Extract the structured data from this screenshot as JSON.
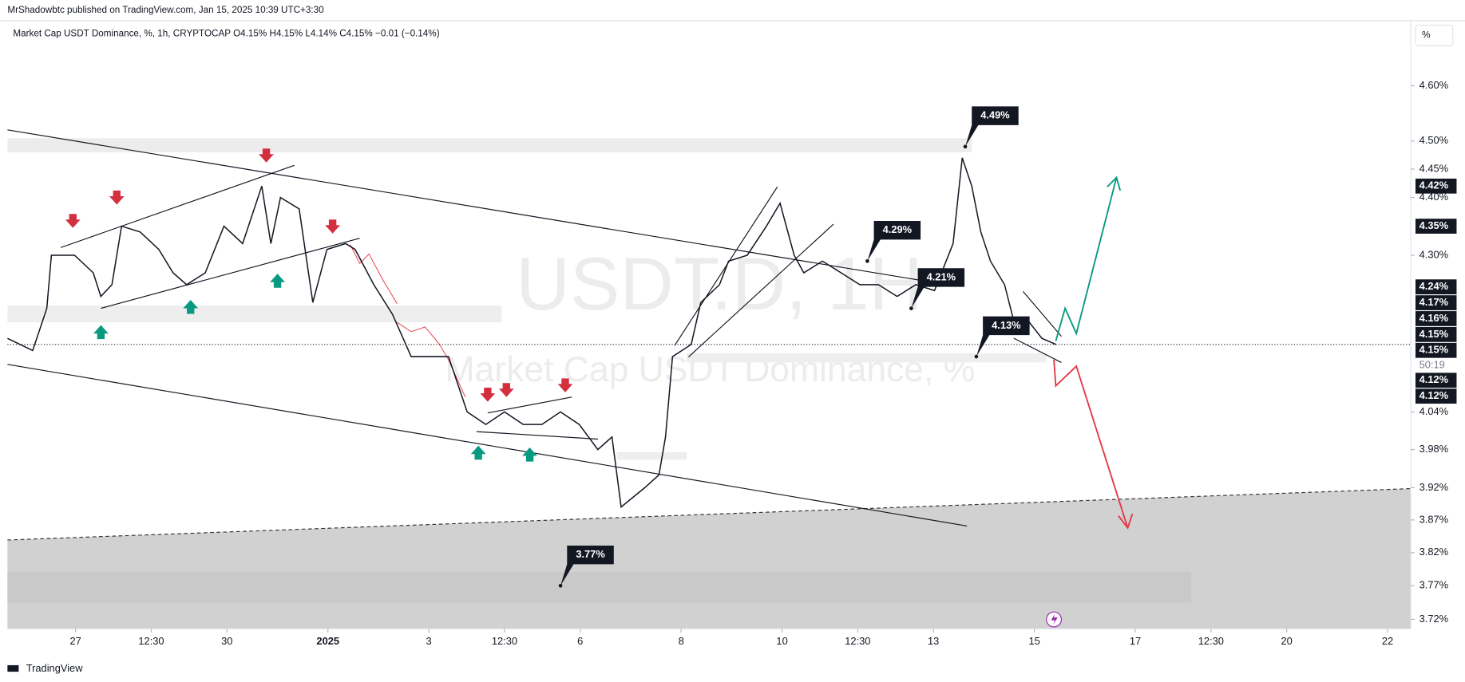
{
  "header": {
    "published": "MrShadowbtc published on TradingView.com, Jan 15, 2025 10:39 UTC+3:30",
    "legend": "Market Cap USDT Dominance, %, 1h, CRYPTOCAP  O4.15%  H4.15%  L4.14%  C4.15%  −0.01 (−0.14%)"
  },
  "scale_button": "%",
  "watermark": {
    "symbol": "USDT.D, 1H",
    "name": "Market Cap USDT Dominance, %"
  },
  "footer": {
    "brand": "TradingView"
  },
  "chart_data": {
    "type": "line",
    "color": "#131722",
    "log_scale": true,
    "grid": false,
    "x": [
      -1.35,
      -0.85,
      -0.57,
      -0.48,
      -0.02,
      0.35,
      0.5,
      0.72,
      0.91,
      1.28,
      1.65,
      1.93,
      2.2,
      2.57,
      2.94,
      3.31,
      3.69,
      3.87,
      4.06,
      4.43,
      4.7,
      4.98,
      5.35,
      5.54,
      5.91,
      6.28,
      6.65,
      7.02,
      7.39,
      7.76,
      8.13,
      8.5,
      8.87,
      9.24,
      9.61,
      9.98,
      10.35,
      10.63,
      10.81,
      11.28,
      11.56,
      11.69,
      11.83,
      12.2,
      12.39,
      12.76,
      12.94,
      13.31,
      13.69,
      13.96,
      14.24,
      14.43,
      14.8,
      15.17,
      15.54,
      15.91,
      16.28,
      16.65,
      17.02,
      17.39,
      17.57,
      17.76,
      17.94,
      18.13,
      18.41,
      18.59,
      18.87,
      19.15,
      19.43
    ],
    "values": [
      4.16,
      4.14,
      4.21,
      4.3,
      4.3,
      4.27,
      4.23,
      4.25,
      4.35,
      4.34,
      4.31,
      4.27,
      4.25,
      4.27,
      4.35,
      4.32,
      4.42,
      4.32,
      4.4,
      4.38,
      4.22,
      4.31,
      4.32,
      4.31,
      4.25,
      4.2,
      4.13,
      4.13,
      4.13,
      4.04,
      4.02,
      4.04,
      4.02,
      4.02,
      4.04,
      4.02,
      3.98,
      4.0,
      3.89,
      3.92,
      3.94,
      4.0,
      4.13,
      4.15,
      4.22,
      4.25,
      4.29,
      4.3,
      4.35,
      4.39,
      4.3,
      4.27,
      4.29,
      4.27,
      4.25,
      4.25,
      4.23,
      4.25,
      4.24,
      4.32,
      4.47,
      4.42,
      4.34,
      4.29,
      4.25,
      4.19,
      4.19,
      4.16,
      4.15
    ],
    "xlim": [
      -1.35,
      26.46
    ],
    "xticks": [
      {
        "value": 0,
        "label": "27"
      },
      {
        "value": 1.5,
        "label": "12:30"
      },
      {
        "value": 3,
        "label": "30"
      },
      {
        "value": 5,
        "label": "2025"
      },
      {
        "value": 7,
        "label": "3"
      },
      {
        "value": 8.5,
        "label": "12:30"
      },
      {
        "value": 10,
        "label": "6"
      },
      {
        "value": 12,
        "label": "8"
      },
      {
        "value": 14,
        "label": "10"
      },
      {
        "value": 15.5,
        "label": "12:30"
      },
      {
        "value": 17,
        "label": "13"
      },
      {
        "value": 19,
        "label": "15"
      },
      {
        "value": 21,
        "label": "17"
      },
      {
        "value": 22.5,
        "label": "12:30"
      },
      {
        "value": 24,
        "label": "20"
      },
      {
        "value": 26,
        "label": "22"
      }
    ],
    "ylim": [
      3.706,
      4.721
    ],
    "yticks": [
      {
        "value": 4.6,
        "label": "4.60%"
      },
      {
        "value": 4.5,
        "label": "4.50%"
      },
      {
        "value": 4.45,
        "label": "4.45%"
      },
      {
        "value": 4.4,
        "label": "4.40%"
      },
      {
        "value": 4.3,
        "label": "4.30%"
      },
      {
        "value": 4.04,
        "label": "4.04%"
      },
      {
        "value": 3.98,
        "label": "3.98%"
      },
      {
        "value": 3.92,
        "label": "3.92%"
      },
      {
        "value": 3.87,
        "label": "3.87%"
      },
      {
        "value": 3.82,
        "label": "3.82%"
      },
      {
        "value": 3.77,
        "label": "3.77%"
      },
      {
        "value": 3.72,
        "label": "3.72%"
      }
    ],
    "price_labels": [
      {
        "value": 4.42,
        "label": "4.42%"
      },
      {
        "value": 4.35,
        "label": "4.35%"
      },
      {
        "value": 4.24,
        "label": "4.24%"
      },
      {
        "value": 4.17,
        "label": "4.17%"
      },
      {
        "value": 4.16,
        "label": "4.16%"
      },
      {
        "value": 4.15,
        "label": "4.15%"
      },
      {
        "value": 4.15,
        "label": "4.15%",
        "countdown": "50:19"
      },
      {
        "value": 4.12,
        "label": "4.12%"
      },
      {
        "value": 4.12,
        "label": "4.12%"
      }
    ],
    "annotations": [
      {
        "x": 17.63,
        "value": 4.49,
        "label": "4.49%"
      },
      {
        "x": 15.69,
        "value": 4.29,
        "label": "4.29%"
      },
      {
        "x": 16.56,
        "value": 4.21,
        "label": "4.21%"
      },
      {
        "x": 17.85,
        "value": 4.13,
        "label": "4.13%"
      },
      {
        "x": 9.61,
        "value": 3.77,
        "label": "3.77%"
      }
    ]
  }
}
